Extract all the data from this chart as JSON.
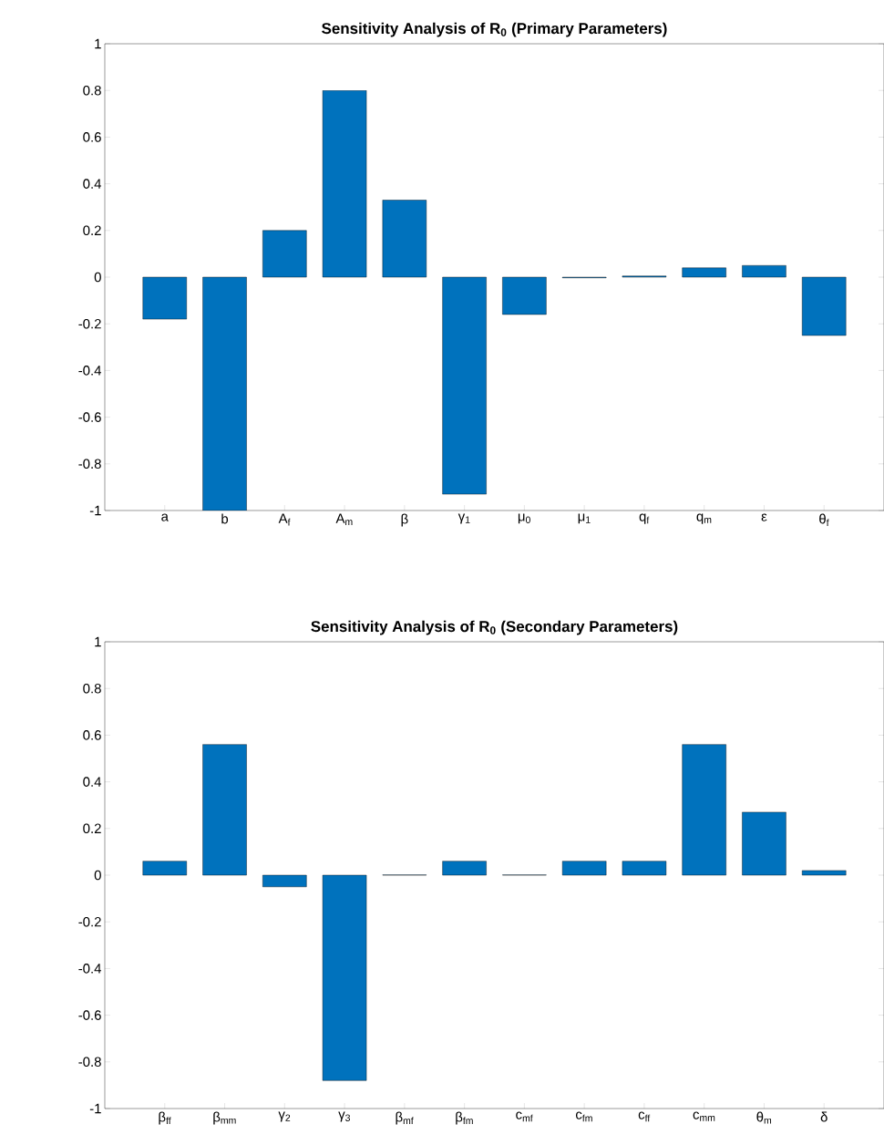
{
  "chart_data": [
    {
      "type": "bar",
      "title": "Sensitivity Analysis of R$_{0}$ (Primary Parameters)",
      "categories": [
        "a",
        "b",
        "A$_{f}$",
        "A$_{m}$",
        "β",
        "γ$_{1}$",
        "μ$_{0}$",
        "μ$_{1}$",
        "q$_{f}$",
        "q$_{m}$",
        "ε",
        "θ$_{f}$"
      ],
      "values": [
        -0.18,
        -1.0,
        0.2,
        0.8,
        0.33,
        -0.93,
        -0.16,
        -0.003,
        0.005,
        0.04,
        0.05,
        -0.25
      ],
      "color": "#0072bd",
      "ylim": [
        -1,
        1
      ],
      "yticks": [
        -1,
        -0.8,
        -0.6,
        -0.4,
        -0.2,
        0,
        0.2,
        0.4,
        0.6,
        0.8,
        1
      ]
    },
    {
      "type": "bar",
      "title": "Sensitivity Analysis of R$_{0}$ (Secondary Parameters)",
      "categories": [
        "β$_{ff}$",
        "β$_{mm}$",
        "γ$_{2}$",
        "γ$_{3}$",
        "β$_{mf}$",
        "β$_{fm}$",
        "c$_{mf}$",
        "c$_{fm}$",
        "c$_{ff}$",
        "c$_{mm}$",
        "θ$_{m}$",
        "δ"
      ],
      "values": [
        0.06,
        0.56,
        -0.05,
        -0.88,
        0.001,
        0.06,
        0.001,
        0.06,
        0.06,
        0.56,
        0.27,
        0.02
      ],
      "color": "#0072bd",
      "ylim": [
        -1,
        1
      ],
      "yticks": [
        -1,
        -0.8,
        -0.6,
        -0.4,
        -0.2,
        0,
        0.2,
        0.4,
        0.6,
        0.8,
        1
      ]
    }
  ]
}
